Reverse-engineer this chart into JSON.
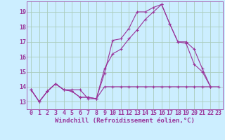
{
  "background_color": "#cceeff",
  "grid_color": "#aaccbb",
  "line_color": "#993399",
  "marker": "+",
  "marker_size": 3,
  "marker_lw": 0.8,
  "line_width": 0.8,
  "xlabel": "Windchill (Refroidissement éolien,°C)",
  "xlabel_fontsize": 6.5,
  "tick_fontsize": 6.0,
  "xlim": [
    -0.5,
    23.5
  ],
  "ylim": [
    12.5,
    19.7
  ],
  "yticks": [
    13,
    14,
    15,
    16,
    17,
    18,
    19
  ],
  "xticks": [
    0,
    1,
    2,
    3,
    4,
    5,
    6,
    7,
    8,
    9,
    10,
    11,
    12,
    13,
    14,
    15,
    16,
    17,
    18,
    19,
    20,
    21,
    22,
    23
  ],
  "series": [
    [
      13.8,
      13.0,
      13.7,
      14.2,
      13.8,
      13.8,
      13.8,
      13.2,
      13.2,
      14.0,
      14.0,
      14.0,
      14.0,
      14.0,
      14.0,
      14.0,
      14.0,
      14.0,
      14.0,
      14.0,
      14.0,
      14.0,
      14.0,
      14.0
    ],
    [
      13.8,
      13.0,
      13.7,
      14.2,
      13.8,
      13.7,
      13.3,
      13.3,
      13.2,
      14.9,
      17.1,
      17.2,
      17.9,
      19.0,
      19.0,
      19.3,
      19.5,
      18.2,
      17.0,
      16.9,
      15.5,
      15.0,
      14.0,
      null
    ],
    [
      13.8,
      13.0,
      13.7,
      14.2,
      13.8,
      13.7,
      13.3,
      13.3,
      13.2,
      15.2,
      16.2,
      16.5,
      17.2,
      17.8,
      18.5,
      19.0,
      19.5,
      18.2,
      17.0,
      17.0,
      16.5,
      15.2,
      14.0,
      null
    ]
  ]
}
